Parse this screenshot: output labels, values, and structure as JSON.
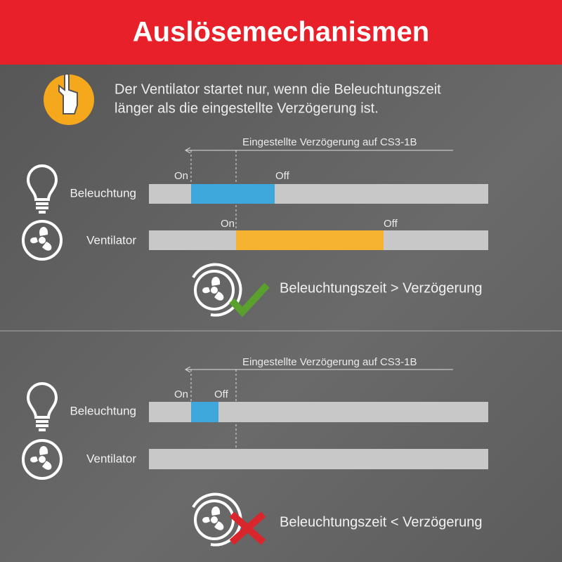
{
  "header": {
    "title": "Auslösemechanismen"
  },
  "note": {
    "lines": [
      "Der Ventilator startet nur, wenn die Beleuchtungszeit",
      "länger als die eingestellte Verzögerung ist."
    ]
  },
  "scenarios": [
    {
      "delay_label": "Eingestellte Verzögerung auf CS3-1B",
      "rows": [
        {
          "label": "Beleuchtung",
          "on": "On",
          "off": "Off"
        },
        {
          "label": "Ventilator",
          "on": "On",
          "off": "Off"
        }
      ],
      "result": "Beleuchtungszeit > Verzögerung"
    },
    {
      "delay_label": "Eingestellte Verzögerung auf CS3-1B",
      "rows": [
        {
          "label": "Beleuchtung",
          "on": "On",
          "off": "Off"
        },
        {
          "label": "Ventilator"
        }
      ],
      "result": "Beleuchtungszeit < Verzögerung"
    }
  ]
}
